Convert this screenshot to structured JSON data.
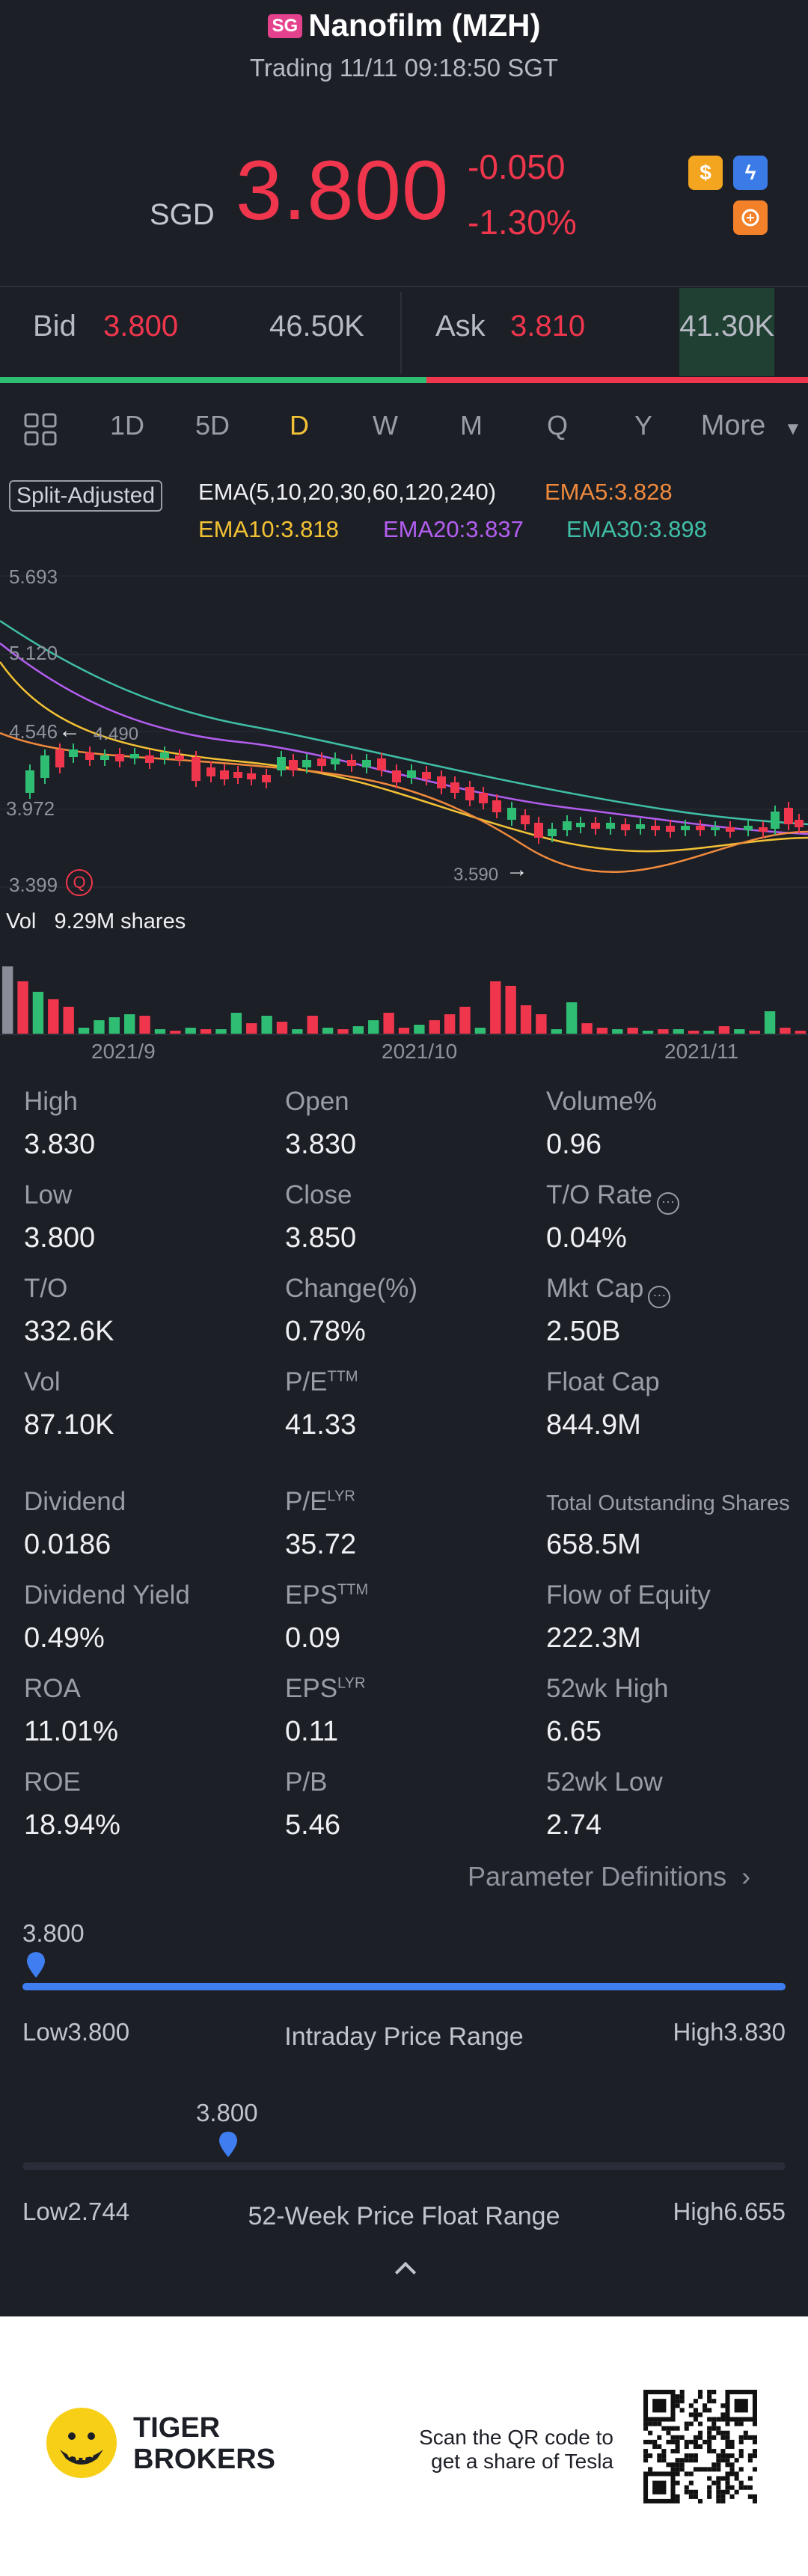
{
  "header": {
    "market_badge": "SG",
    "title": "Nanofilm (MZH)",
    "subtitle": "Trading 11/11 09:18:50 SGT",
    "currency": "SGD",
    "price": "3.800",
    "change": "-0.050",
    "change_pct": "-1.30%",
    "icons": [
      "dollar-icon",
      "lightning-icon",
      "brain-icon"
    ]
  },
  "quote": {
    "bid_label": "Bid",
    "bid_price": "3.800",
    "bid_volume": "46.50K",
    "ask_label": "Ask",
    "ask_price": "3.810",
    "ask_volume": "41.30K"
  },
  "tabs": {
    "items": [
      "1D",
      "5D",
      "D",
      "W",
      "M",
      "Q",
      "Y",
      "More"
    ],
    "active": "D"
  },
  "indicators": {
    "split_label": "Split-Adjusted",
    "ema_params": "EMA(5,10,20,30,60,120,240)",
    "ema5": "EMA5:3.828",
    "ema10": "EMA10:3.818",
    "ema20": "EMA20:3.837",
    "ema30": "EMA30:3.898"
  },
  "chart_data": {
    "type": "candlestick",
    "y_ticks": [
      "5.693",
      "5.120",
      "4.546",
      "3.972",
      "3.399"
    ],
    "x_ticks": [
      "2021/9",
      "2021/10",
      "2021/11"
    ],
    "annotations": {
      "high": "4.490",
      "low": "3.590"
    },
    "volume_label": "Vol",
    "volume_value": "9.29M shares",
    "colors": {
      "up": "#2fbc73",
      "down": "#f0364c",
      "ema5": "#f08a3c",
      "ema10": "#f3c234",
      "ema20": "#b35ef0",
      "ema30": "#3fbfa6"
    }
  },
  "stats": [
    {
      "label": "High",
      "value": "3.830"
    },
    {
      "label": "Open",
      "value": "3.830"
    },
    {
      "label": "Volume%",
      "value": "0.96"
    },
    {
      "label": "Low",
      "value": "3.800"
    },
    {
      "label": "Close",
      "value": "3.850"
    },
    {
      "label": "T/O Rate",
      "value": "0.04%"
    },
    {
      "label": "T/O",
      "value": "332.6K"
    },
    {
      "label": "Change(%)",
      "value": "0.78%"
    },
    {
      "label": "Mkt Cap",
      "value": "2.50B"
    },
    {
      "label": "Vol",
      "value": "87.10K"
    },
    {
      "label": "P/E",
      "sup": "TTM",
      "value": "41.33"
    },
    {
      "label": "Float Cap",
      "value": "844.9M"
    },
    {
      "label": "Dividend",
      "value": "0.0186"
    },
    {
      "label": "P/E",
      "sup": "LYR",
      "value": "35.72"
    },
    {
      "label": "Total Outstanding Shares",
      "value": "658.5M"
    },
    {
      "label": "Dividend Yield",
      "value": "0.49%"
    },
    {
      "label": "EPS",
      "sup": "TTM",
      "value": "0.09"
    },
    {
      "label": "Flow of Equity",
      "value": "222.3M"
    },
    {
      "label": "ROA",
      "value": "11.01%"
    },
    {
      "label": "EPS",
      "sup": "LYR",
      "value": "0.11"
    },
    {
      "label": "52wk High",
      "value": "6.65"
    },
    {
      "label": "ROE",
      "value": "18.94%"
    },
    {
      "label": "P/B",
      "value": "5.46"
    },
    {
      "label": "52wk Low",
      "value": "2.74"
    }
  ],
  "param_link": "Parameter Definitions",
  "intraday": {
    "current": "3.800",
    "low": "Low3.800",
    "high": "High3.830",
    "title": "Intraday Price Range",
    "level": 0.0
  },
  "week52": {
    "current": "3.800",
    "low": "Low2.744",
    "high": "High6.655",
    "title": "52-Week Price Float Range",
    "level": 0.27
  },
  "footer": {
    "brand_line1": "TIGER",
    "brand_line2": "BROKERS",
    "qr_text1": "Scan the QR code to",
    "qr_text2": "get a share of Tesla"
  }
}
